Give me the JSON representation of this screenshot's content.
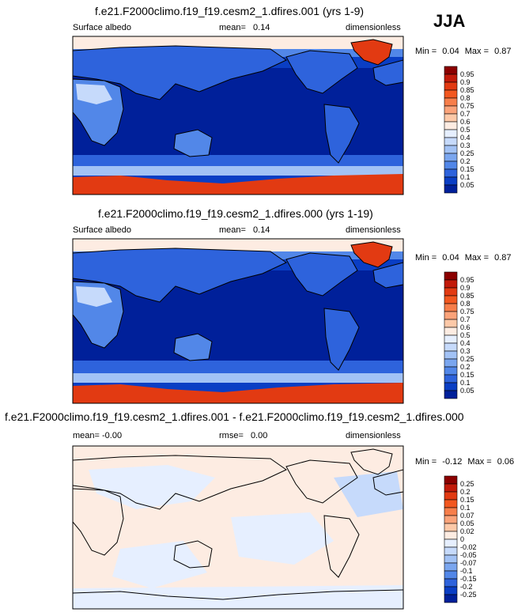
{
  "season": "JJA",
  "chart_data": [
    {
      "type": "heatmap",
      "title": "f.e21.F2000climo.f19_f19.cesm2_1.dfires.001 (yrs 1-9)",
      "left_label": "Surface albedo",
      "center_label_name": "mean=",
      "center_label_value": "0.14",
      "right_label": "dimensionless",
      "min_label": "Min =",
      "min_value": "0.04",
      "max_label": "Max =",
      "max_value": "0.87",
      "colorbar_levels": [
        "0.95",
        "0.9",
        "0.85",
        "0.8",
        "0.75",
        "0.7",
        "0.6",
        "0.5",
        "0.4",
        "0.3",
        "0.25",
        "0.2",
        "0.15",
        "0.1",
        "0.05"
      ],
      "colorbar_colors": [
        "#8b0000",
        "#c21a0a",
        "#e23a12",
        "#f2571f",
        "#f77e4a",
        "#fba37a",
        "#fdc9a8",
        "#fdece2",
        "#e6efff",
        "#c6dafb",
        "#a2c2f5",
        "#7aa6ef",
        "#5287e8",
        "#2e63dc",
        "#0a3ec4",
        "#00209a"
      ]
    },
    {
      "type": "heatmap",
      "title": "f.e21.F2000climo.f19_f19.cesm2_1.dfires.000 (yrs 1-19)",
      "left_label": "Surface albedo",
      "center_label_name": "mean=",
      "center_label_value": "0.14",
      "right_label": "dimensionless",
      "min_label": "Min =",
      "min_value": "0.04",
      "max_label": "Max =",
      "max_value": "0.87",
      "colorbar_levels": [
        "0.95",
        "0.9",
        "0.85",
        "0.8",
        "0.75",
        "0.7",
        "0.6",
        "0.5",
        "0.4",
        "0.3",
        "0.25",
        "0.2",
        "0.15",
        "0.1",
        "0.05"
      ],
      "colorbar_colors": [
        "#8b0000",
        "#c21a0a",
        "#e23a12",
        "#f2571f",
        "#f77e4a",
        "#fba37a",
        "#fdc9a8",
        "#fdece2",
        "#e6efff",
        "#c6dafb",
        "#a2c2f5",
        "#7aa6ef",
        "#5287e8",
        "#2e63dc",
        "#0a3ec4",
        "#00209a"
      ]
    },
    {
      "type": "heatmap",
      "title": "f.e21.F2000climo.f19_f19.cesm2_1.dfires.001 - f.e21.F2000climo.f19_f19.cesm2_1.dfires.000",
      "left_label": "mean= -0.00",
      "center_label_name": "rmse=",
      "center_label_value": "0.00",
      "right_label": "dimensionless",
      "min_label": "Min =",
      "min_value": "-0.12",
      "max_label": "Max =",
      "max_value": "0.06",
      "colorbar_levels": [
        "0.25",
        "0.2",
        "0.15",
        "0.1",
        "0.07",
        "0.05",
        "0.02",
        "0",
        "-0.02",
        "-0.05",
        "-0.07",
        "-0.1",
        "-0.15",
        "-0.2",
        "-0.25"
      ],
      "colorbar_colors": [
        "#8b0000",
        "#c21a0a",
        "#e23a12",
        "#f2571f",
        "#f77e4a",
        "#fba37a",
        "#fdc9a8",
        "#fdece2",
        "#e6efff",
        "#c6dafb",
        "#a2c2f5",
        "#7aa6ef",
        "#5287e8",
        "#2e63dc",
        "#0a3ec4",
        "#00209a"
      ]
    }
  ]
}
